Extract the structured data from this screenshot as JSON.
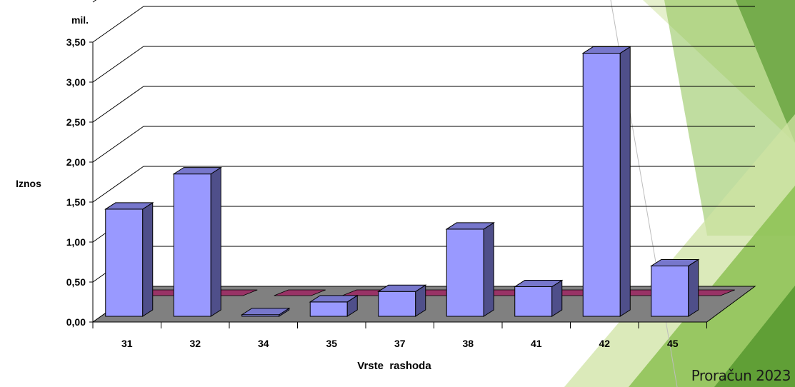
{
  "footer_text": "Proračun 2023",
  "theme": {
    "green_dark": "#5a9a32",
    "green_mid": "#8cc152",
    "green_light": "#cfe3a3"
  },
  "chart_data": {
    "type": "bar",
    "title": "",
    "unit": "mil.",
    "xlabel": "Vrste  rashoda",
    "ylabel": "Iznos",
    "ylim": [
      0,
      3.5
    ],
    "yticks": [
      "0,00",
      "0,50",
      "1,00",
      "1,50",
      "2,00",
      "2,50",
      "3,00",
      "3,50"
    ],
    "categories": [
      "31",
      "32",
      "34",
      "35",
      "37",
      "38",
      "41",
      "42",
      "45"
    ],
    "series": [
      {
        "color": "#9999ff",
        "values": [
          1.34,
          1.78,
          0.02,
          0.18,
          0.31,
          1.09,
          0.37,
          3.29,
          0.63
        ]
      },
      {
        "color": "#993366",
        "values": [
          0,
          0,
          0,
          0,
          0,
          0,
          0,
          0,
          0
        ]
      }
    ],
    "grid": true,
    "style": "3d-column"
  }
}
